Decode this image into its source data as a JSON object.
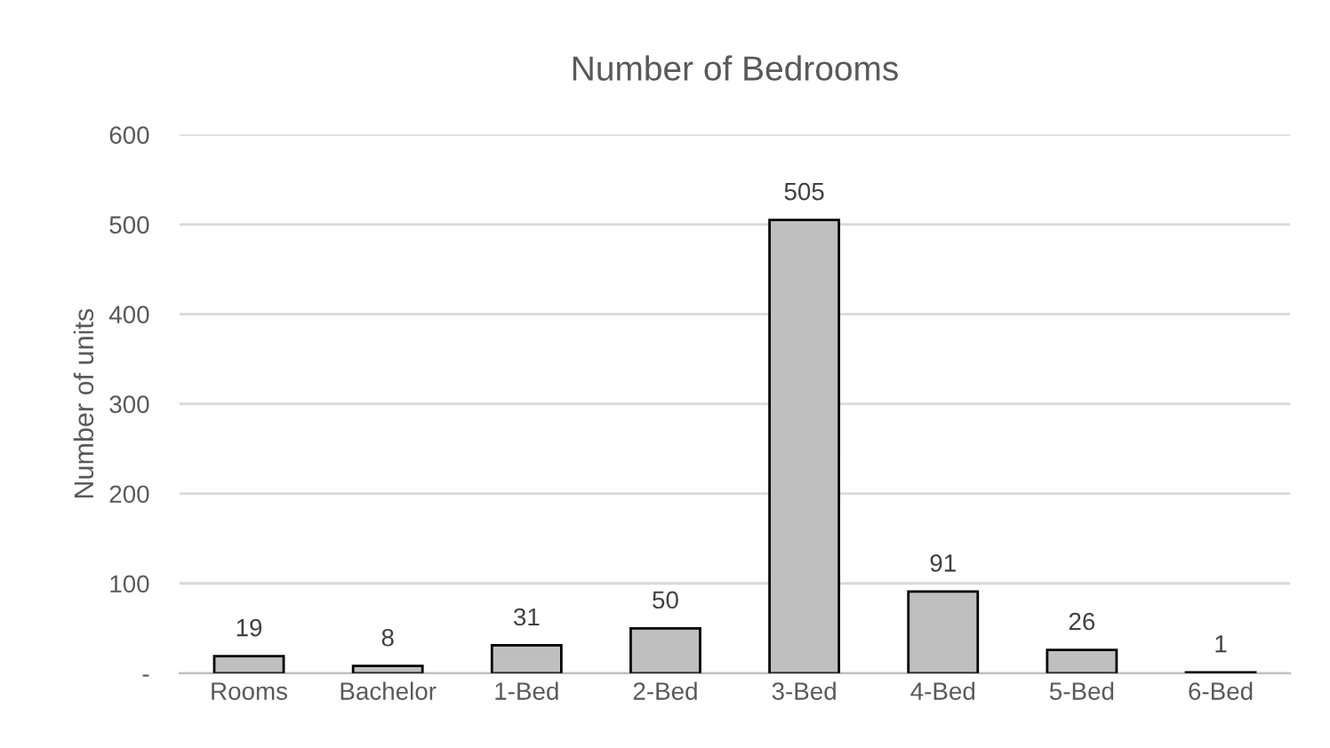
{
  "chart_data": {
    "type": "bar",
    "title": "Number of Bedrooms",
    "ylabel": "Number of units",
    "categories": [
      "Rooms",
      "Bachelor",
      "1-Bed",
      "2-Bed",
      "3-Bed",
      "4-Bed",
      "5-Bed",
      "6-Bed"
    ],
    "values": [
      19,
      8,
      31,
      50,
      505,
      91,
      26,
      1
    ],
    "color": "#bfbfbf",
    "ylim": [
      0,
      600
    ],
    "yticks": [
      {
        "value": 0,
        "label": "-"
      },
      100,
      200,
      300,
      400,
      500,
      600
    ],
    "grid": "y",
    "data_labels": true,
    "legend": false
  }
}
